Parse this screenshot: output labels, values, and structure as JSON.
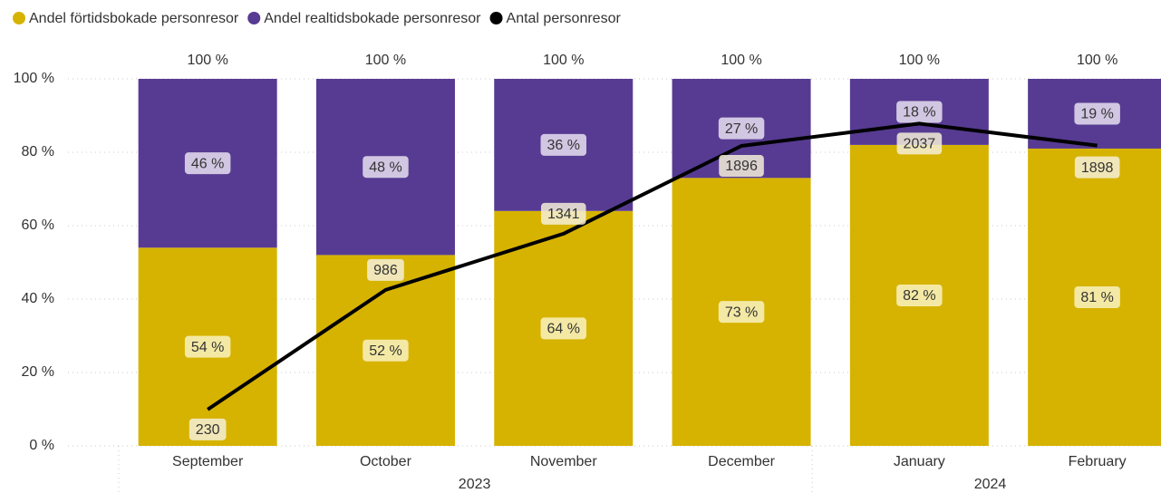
{
  "chart_data": {
    "type": "bar",
    "stacked": true,
    "legend": "top-left",
    "category_groups": [
      {
        "name": "2023",
        "categories": [
          "September",
          "October",
          "November",
          "December"
        ]
      },
      {
        "name": "2024",
        "categories": [
          "January",
          "February"
        ]
      }
    ],
    "series": [
      {
        "name": "Andel förtidsbokade personresor",
        "type": "bar",
        "color": "#d6b300",
        "values": [
          54,
          52,
          64,
          73,
          82,
          81
        ],
        "value_labels": [
          "54 %",
          "52 %",
          "64 %",
          "73 %",
          "82 %",
          "81 %"
        ]
      },
      {
        "name": "Andel realtidsbokade personresor",
        "type": "bar",
        "color": "#573b92",
        "values": [
          46,
          48,
          36,
          27,
          18,
          19
        ],
        "value_labels": [
          "46 %",
          "48 %",
          "36 %",
          "27 %",
          "18 %",
          "19 %"
        ]
      },
      {
        "name": "Antal personresor",
        "type": "line",
        "axis": "y2",
        "color": "#000000",
        "values": [
          230,
          986,
          1341,
          1896,
          2037,
          1898
        ]
      }
    ],
    "totals": {
      "values": [
        100,
        100,
        100,
        100,
        100,
        100
      ],
      "value_labels": [
        "100 %",
        "100 %",
        "100 %",
        "100 %",
        "100 %",
        "100 %"
      ]
    },
    "ylim": [
      0,
      100
    ],
    "yticks": [
      {
        "value": 0,
        "label": "0 %"
      },
      {
        "value": 20,
        "label": "20 %"
      },
      {
        "value": 40,
        "label": "40 %"
      },
      {
        "value": 60,
        "label": "60 %"
      },
      {
        "value": 80,
        "label": "80 %"
      },
      {
        "value": 100,
        "label": "100 %"
      }
    ],
    "y2lim": [
      0,
      2320
    ],
    "grid": true
  }
}
